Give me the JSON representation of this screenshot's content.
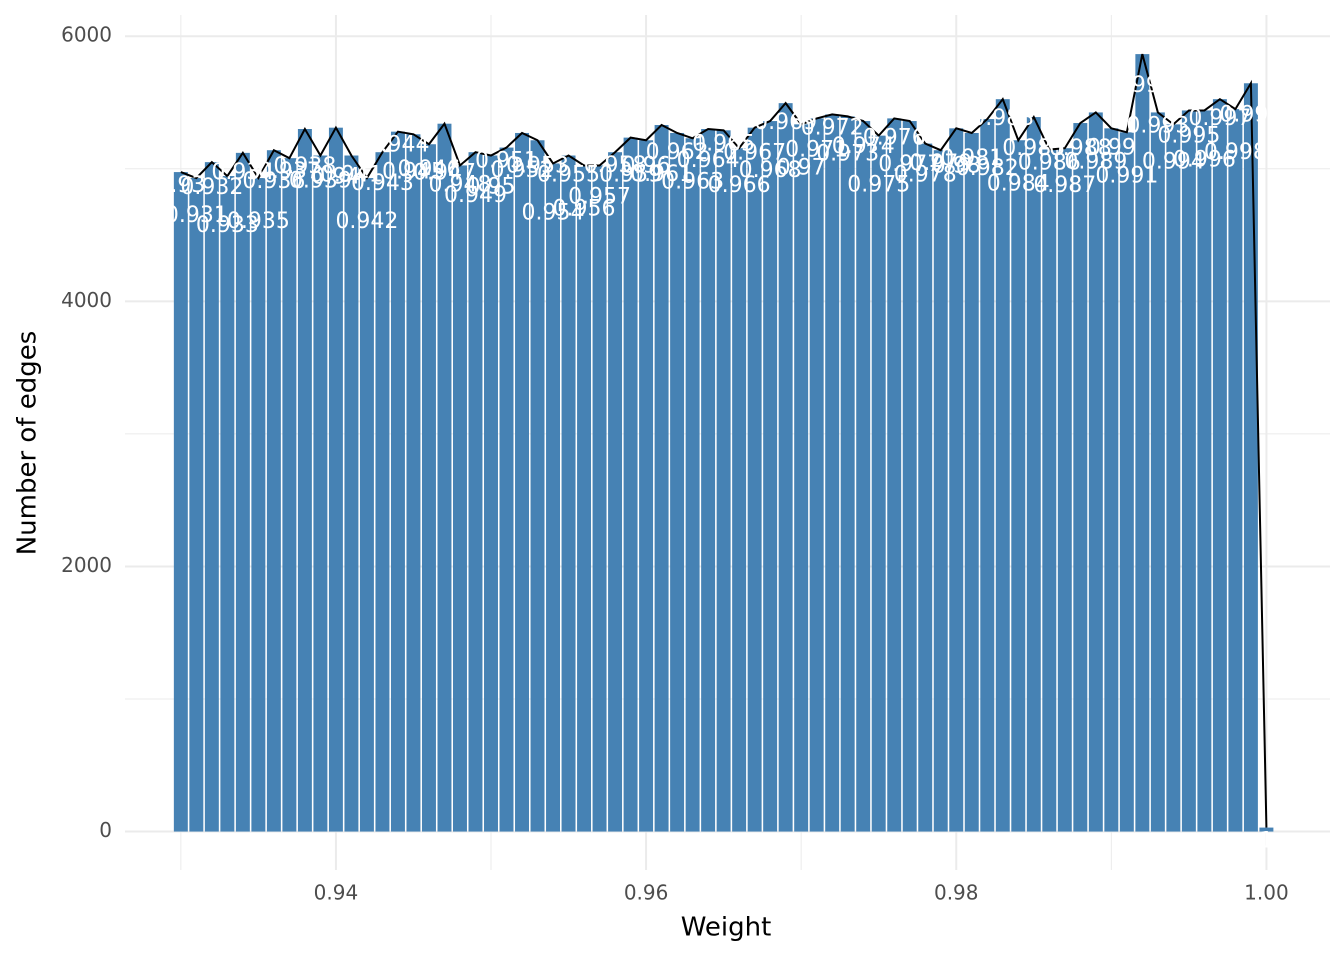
{
  "chart_data": {
    "type": "bar",
    "x_label": "Weight",
    "y_label": "Number of edges",
    "x": [
      0.93,
      0.931,
      0.932,
      0.933,
      0.934,
      0.935,
      0.936,
      0.937,
      0.938,
      0.939,
      0.94,
      0.941,
      0.942,
      0.943,
      0.944,
      0.945,
      0.946,
      0.947,
      0.948,
      0.949,
      0.95,
      0.951,
      0.952,
      0.953,
      0.954,
      0.955,
      0.956,
      0.957,
      0.958,
      0.959,
      0.96,
      0.961,
      0.962,
      0.963,
      0.964,
      0.965,
      0.966,
      0.967,
      0.968,
      0.969,
      0.97,
      0.971,
      0.972,
      0.973,
      0.974,
      0.975,
      0.976,
      0.977,
      0.978,
      0.979,
      0.98,
      0.981,
      0.982,
      0.983,
      0.984,
      0.985,
      0.986,
      0.987,
      0.988,
      0.989,
      0.99,
      0.991,
      0.992,
      0.993,
      0.994,
      0.995,
      0.996,
      0.997,
      0.998,
      0.999,
      1
    ],
    "values": [
      4975,
      4930,
      5050,
      4945,
      5120,
      4930,
      5140,
      5080,
      5300,
      5100,
      5310,
      5100,
      4930,
      5125,
      5280,
      5260,
      5185,
      5340,
      5025,
      5125,
      5100,
      5160,
      5270,
      5215,
      5040,
      5100,
      5025,
      5025,
      5125,
      5235,
      5215,
      5330,
      5270,
      5230,
      5300,
      5290,
      5155,
      5310,
      5360,
      5495,
      5335,
      5380,
      5410,
      5395,
      5360,
      5250,
      5380,
      5360,
      5190,
      5140,
      5305,
      5270,
      5375,
      5525,
      5215,
      5390,
      5145,
      5155,
      5345,
      5425,
      5305,
      5275,
      5865,
      5425,
      5335,
      5440,
      5440,
      5525,
      5450,
      5645,
      30
    ],
    "color": "#4682b4",
    "line_color": "#000000",
    "line_overlay": true,
    "point_labels": true,
    "xlim": [
      0.9264,
      1.0041
    ],
    "ylim": [
      -290,
      6160
    ],
    "xticks": [
      0.94,
      0.96,
      0.98,
      {
        "value": 1,
        "label": "1.00"
      }
    ],
    "yticks": [
      0,
      2000,
      4000,
      6000
    ],
    "grid": true,
    "minor_grid": true
  }
}
